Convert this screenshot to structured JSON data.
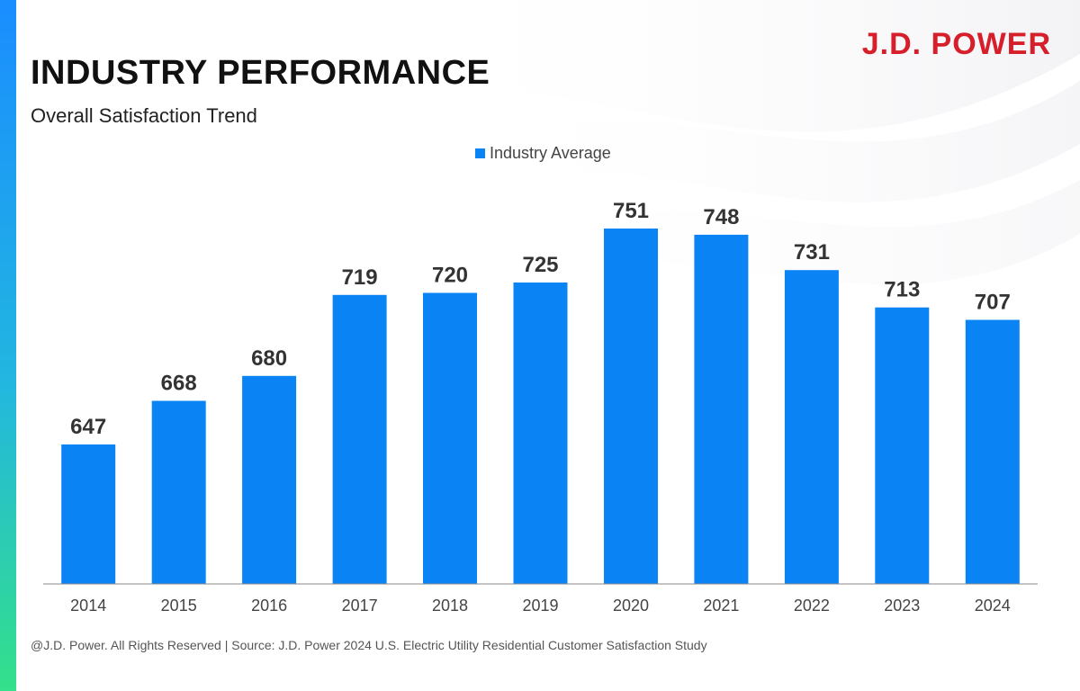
{
  "brand": {
    "logo_text": "J.D. POWER",
    "color": "#d61f2b"
  },
  "header": {
    "title": "INDUSTRY PERFORMANCE",
    "subtitle": "Overall Satisfaction Trend"
  },
  "footer": {
    "text": "@J.D. Power. All Rights Reserved | Source: J.D. Power 2024 U.S. Electric Utility Residential Customer Satisfaction Study"
  },
  "chart_data": {
    "type": "bar",
    "title": "INDUSTRY PERFORMANCE",
    "subtitle": "Overall Satisfaction Trend",
    "categories": [
      "2014",
      "2015",
      "2016",
      "2017",
      "2018",
      "2019",
      "2020",
      "2021",
      "2022",
      "2023",
      "2024"
    ],
    "series": [
      {
        "name": "Industry Average",
        "color": "#0a84f5",
        "values": [
          647,
          668,
          680,
          719,
          720,
          725,
          751,
          748,
          731,
          713,
          707
        ]
      }
    ],
    "data_labels": true,
    "legend_position": "top-center",
    "grid": false,
    "xlabel": "",
    "ylabel": ""
  }
}
